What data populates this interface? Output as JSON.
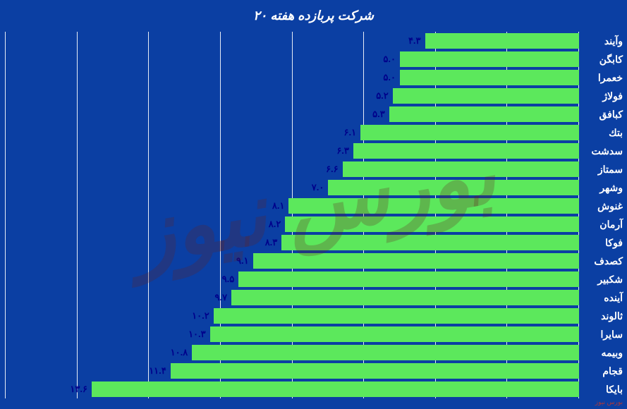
{
  "chart": {
    "type": "bar-horizontal",
    "title": "۲۰ شرکت پربازده هفته",
    "title_color": "#ffffff",
    "title_fontsize": 18,
    "background_color": "#0b3fa3",
    "bar_color": "#5ce85c",
    "grid_color": "#ffffff",
    "label_color": "#ffffff",
    "value_label_color": "#00008b",
    "label_fontsize": 14,
    "value_fontsize": 13,
    "x_max": 16,
    "x_min": 0,
    "x_gridlines": [
      0,
      2,
      4,
      6,
      8,
      10,
      12,
      14,
      16
    ],
    "categories": [
      "وآیند",
      "کابگن",
      "خعمرا",
      "فولاژ",
      "کبافق",
      "بتك",
      "سدشت",
      "سمتاز",
      "وشهر",
      "غنوش",
      "آرمان",
      "فوکا",
      "کصدف",
      "شکبیر",
      "آینده",
      "ثالوند",
      "سایرا",
      "وبیمه",
      "قجام",
      "بایکا"
    ],
    "values": [
      4.3,
      5.0,
      5.0,
      5.2,
      5.3,
      6.1,
      6.3,
      6.6,
      7.0,
      8.1,
      8.2,
      8.3,
      9.1,
      9.5,
      9.7,
      10.2,
      10.3,
      10.8,
      11.4,
      13.6
    ],
    "value_labels": [
      "۴.۳",
      "۵.۰",
      "۵.۰",
      "۵.۲",
      "۵.۳",
      "۶.۱",
      "۶.۳",
      "۶.۶",
      "۷.۰",
      "۸.۱",
      "۸.۲",
      "۸.۳",
      "۹.۱",
      "۹.۵",
      "۹.۷",
      "۱۰.۲",
      "۱۰.۳",
      "۱۰.۸",
      "۱۱.۴",
      "۱۳.۶"
    ]
  },
  "watermark": {
    "text_small": "بورس نیوز",
    "text_overlay": "بورس نیوز"
  }
}
